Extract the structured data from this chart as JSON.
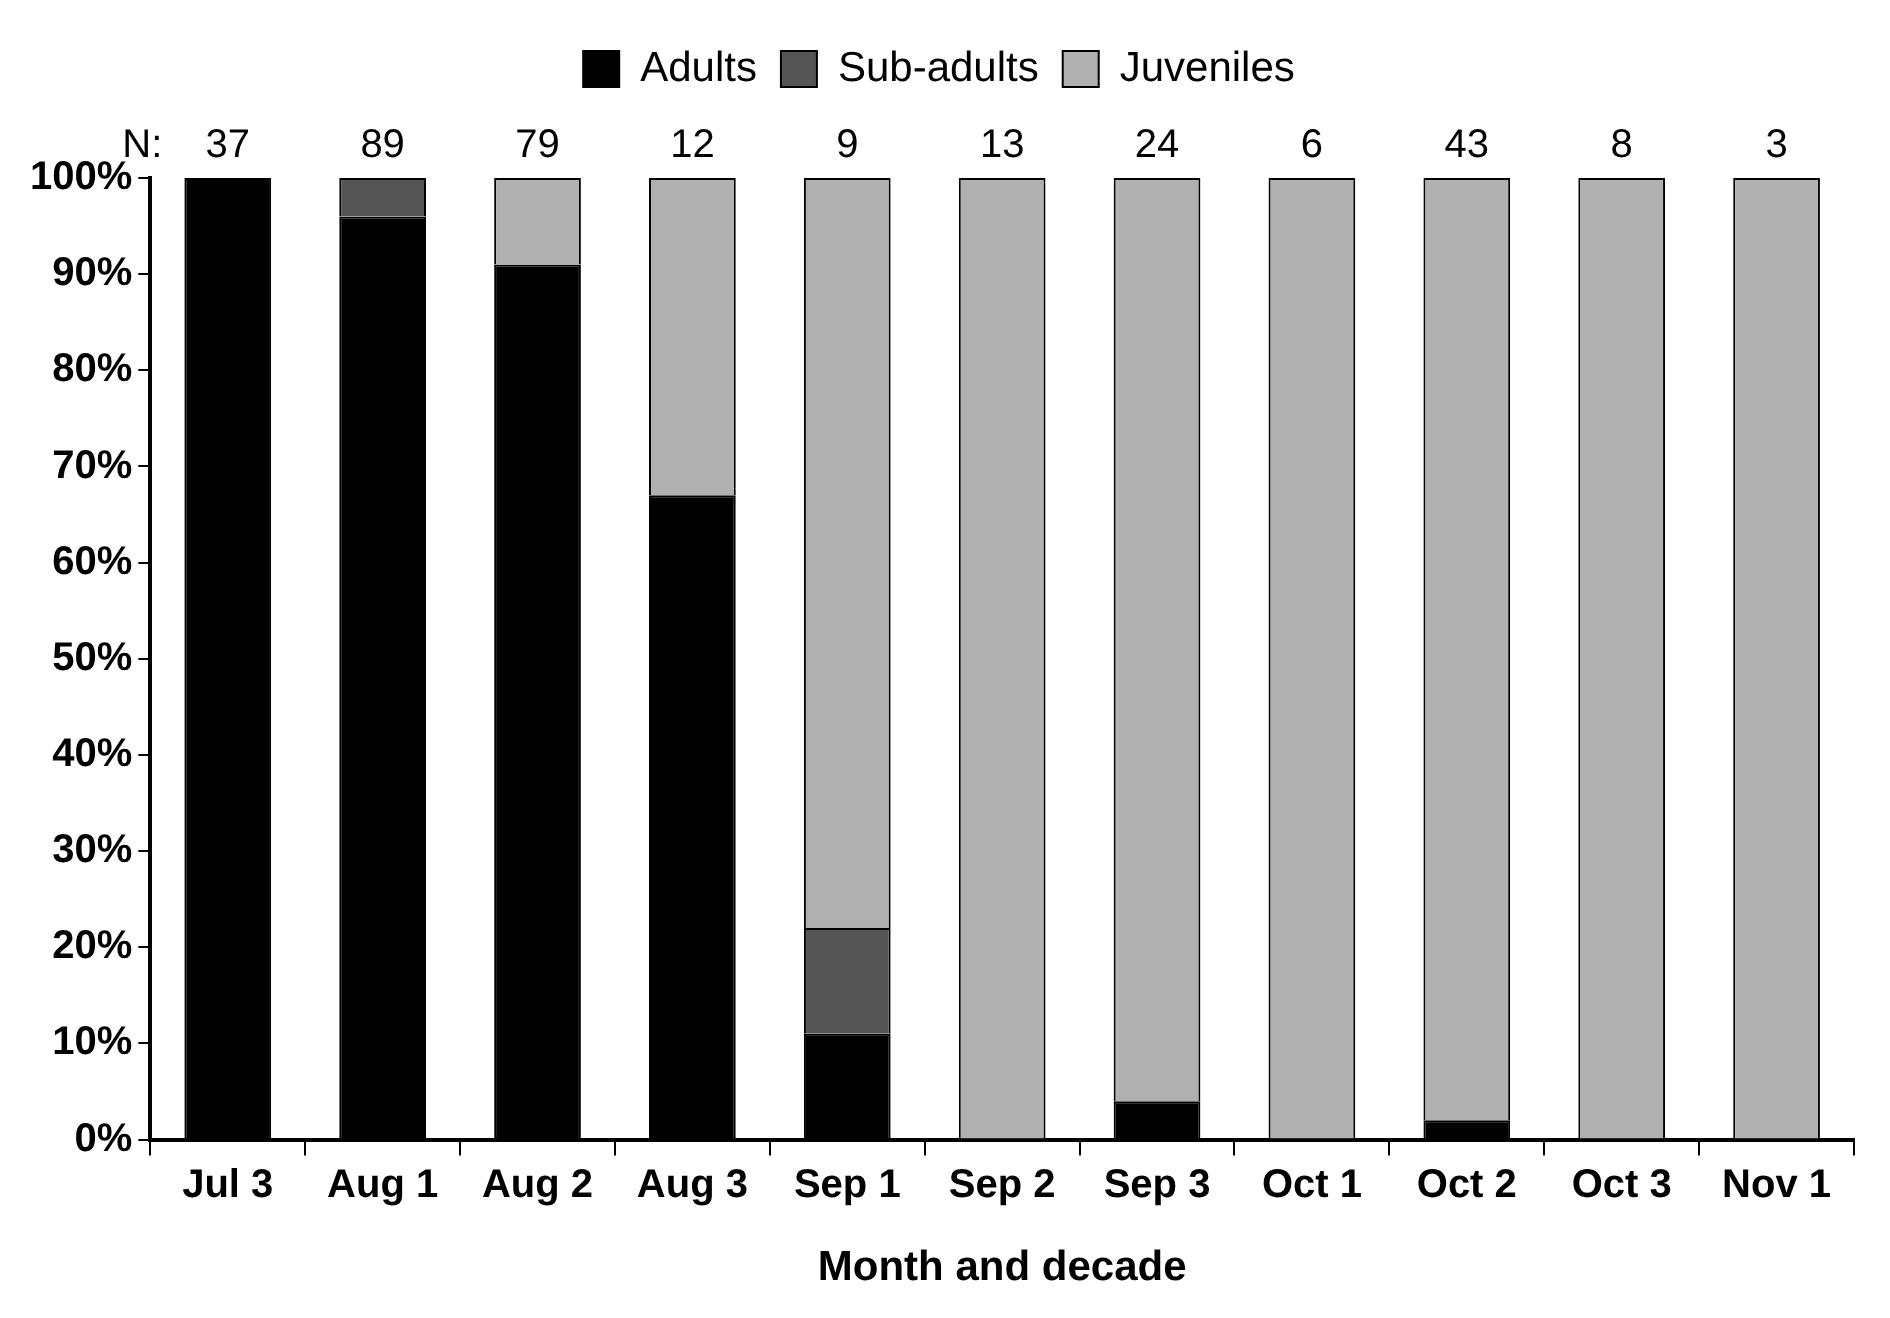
{
  "chart_data": {
    "type": "bar",
    "stacked": true,
    "xlabel": "Month and decade",
    "categories": [
      "Jul 3",
      "Aug 1",
      "Aug 2",
      "Aug 3",
      "Sep 1",
      "Sep 2",
      "Sep 3",
      "Oct 1",
      "Oct 2",
      "Oct 3",
      "Nov 1"
    ],
    "series": [
      {
        "name": "Adults",
        "color": "#000000",
        "values": [
          100,
          96,
          91,
          67,
          11,
          0,
          4,
          0,
          2,
          0,
          0
        ]
      },
      {
        "name": "Sub-adults",
        "color": "#555555",
        "values": [
          0,
          4,
          0,
          0,
          11,
          0,
          0,
          0,
          0,
          0,
          0
        ]
      },
      {
        "name": "Juveniles",
        "color": "#b0b0b0",
        "values": [
          0,
          0,
          9,
          33,
          78,
          100,
          96,
          100,
          98,
          100,
          100
        ]
      }
    ],
    "ylim": [
      0,
      100
    ],
    "yticks": [
      {
        "value": 0,
        "label": "0%"
      },
      {
        "value": 10,
        "label": "10%"
      },
      {
        "value": 20,
        "label": "20%"
      },
      {
        "value": 30,
        "label": "30%"
      },
      {
        "value": 40,
        "label": "40%"
      },
      {
        "value": 50,
        "label": "50%"
      },
      {
        "value": 60,
        "label": "60%"
      },
      {
        "value": 70,
        "label": "70%"
      },
      {
        "value": 80,
        "label": "80%"
      },
      {
        "value": 90,
        "label": "90%"
      },
      {
        "value": 100,
        "label": "100%"
      }
    ],
    "legend": "top",
    "annotations": [
      "N:",
      {
        "text": "37",
        "x": "Jul 3",
        "y": 100
      },
      {
        "text": "89",
        "x": "Aug 1",
        "y": 100
      },
      {
        "text": "79",
        "x": "Aug 2",
        "y": 100
      },
      {
        "text": "12",
        "x": "Aug 3",
        "y": 100
      },
      {
        "text": "9",
        "x": "Sep 1",
        "y": 100
      },
      {
        "text": "13",
        "x": "Sep 2",
        "y": 100
      },
      {
        "text": "24",
        "x": "Sep 3",
        "y": 100
      },
      {
        "text": "6",
        "x": "Oct 1",
        "y": 100
      },
      {
        "text": "43",
        "x": "Oct 2",
        "y": 100
      },
      {
        "text": "8",
        "x": "Oct 3",
        "y": 100
      },
      {
        "text": "3",
        "x": "Nov 1",
        "y": 100
      }
    ]
  }
}
